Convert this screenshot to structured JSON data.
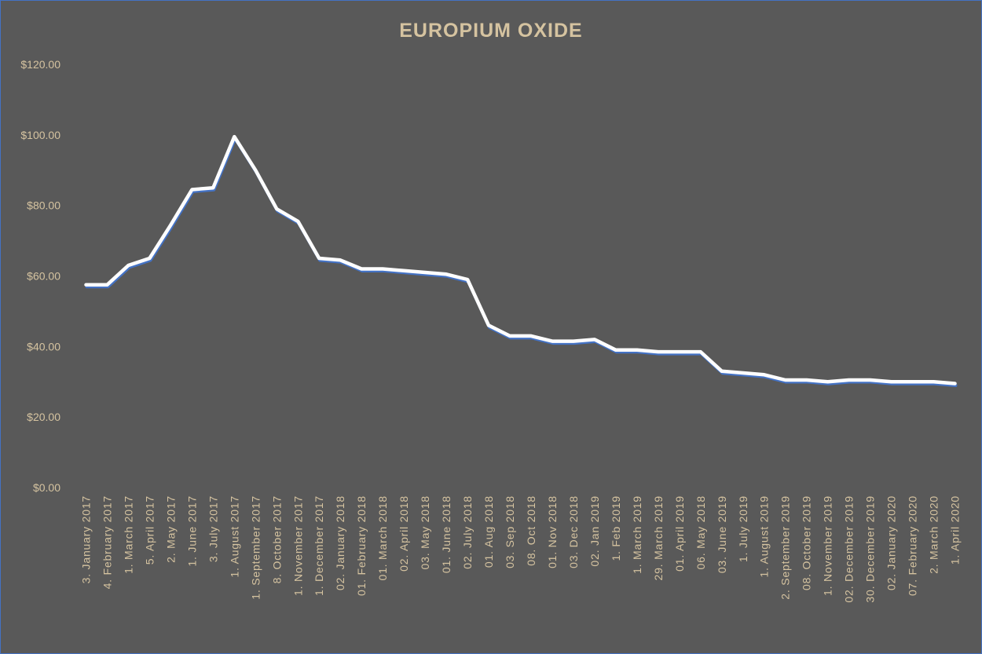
{
  "colors": {
    "background": "#595959",
    "text": "#d5c3a0",
    "line": "#ffffff",
    "line_shadow": "#4472c4",
    "drop_line": "#ffffff"
  },
  "chart_data": {
    "type": "line",
    "title": "EUROPIUM  OXIDE",
    "xlabel": "",
    "ylabel": "",
    "ylim": [
      0,
      120
    ],
    "yticks": [
      "$0.00",
      "$20.00",
      "$40.00",
      "$60.00",
      "$80.00",
      "$100.00",
      "$120.00"
    ],
    "grid": false,
    "legend": "none",
    "categories": [
      "3. January 2017",
      "4. February 2017",
      "1. March 2017",
      "5. April 2017",
      "2. May 2017",
      "1. June 2017",
      "3. July 2017",
      "1. August 2017",
      "1. September 2017",
      "8. October 2017",
      "1. November 2017",
      "1. December 2017",
      "02. January 2018",
      "01. February 2018",
      "01. March 2018",
      "02. April 2018",
      "03. May 2018",
      "01. June 2018",
      "02. July 2018",
      "01. Aug 2018",
      "03. Sep 2018",
      "08. Oct 2018",
      "01. Nov 2018",
      "03. Dec 2018",
      "02. Jan 2019",
      "1. Feb 2019",
      "1. March 2019",
      "29. March 2019",
      "01. April 2019",
      "06. May 2018",
      "03. June 2019",
      "1. July 2019",
      "1. August 2019",
      "2. September 2019",
      "08. October 2019",
      "1. November 2019",
      "02. December 2019",
      "30. December 2019",
      "02. January 2020",
      "07. February 2020",
      "2. March 2020",
      "1. April 2020"
    ],
    "values": [
      57.5,
      57.5,
      63.0,
      65.0,
      74.5,
      84.5,
      85.0,
      99.5,
      90.0,
      79.0,
      75.5,
      65.0,
      64.5,
      62.0,
      62.0,
      61.5,
      61.0,
      60.5,
      59.0,
      46.0,
      43.0,
      43.0,
      41.5,
      41.5,
      42.0,
      39.0,
      39.0,
      38.5,
      38.5,
      38.5,
      33.0,
      32.5,
      32.0,
      30.5,
      30.5,
      30.0,
      30.5,
      30.5,
      30.0,
      30.0,
      30.0,
      29.5
    ]
  }
}
